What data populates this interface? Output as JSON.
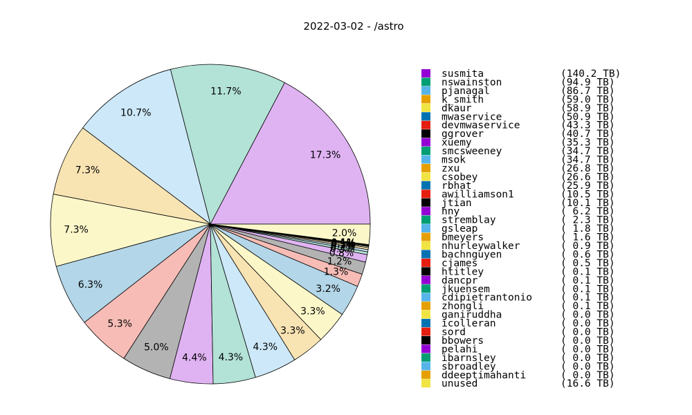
{
  "chart_data": {
    "type": "pie",
    "title": "2022-03-02 - /astro",
    "unit": "TB",
    "legend_position": "right",
    "slices": [
      {
        "label": "susmita",
        "value": 140.2,
        "value_text": "(140.2 TB)",
        "pct_label": "17.3%",
        "color": "#dfb3f2",
        "swatch": "#9400d3"
      },
      {
        "label": "nswainston",
        "value": 94.9,
        "value_text": "(94.9 TB)",
        "pct_label": "11.7%",
        "color": "#b3e2d6",
        "swatch": "#009e73"
      },
      {
        "label": "pjanagal",
        "value": 86.7,
        "value_text": "(86.7 TB)",
        "pct_label": "10.7%",
        "color": "#cde8f8",
        "swatch": "#56b4e9"
      },
      {
        "label": "k_smith",
        "value": 59.0,
        "value_text": "(59.0 TB)",
        "pct_label": "7.3%",
        "color": "#f8e3b3",
        "swatch": "#e69f00"
      },
      {
        "label": "dkaur",
        "value": 58.9,
        "value_text": "(58.9 TB)",
        "pct_label": "7.3%",
        "color": "#fbf7c9",
        "swatch": "#f0e442"
      },
      {
        "label": "mwaservice",
        "value": 50.9,
        "value_text": "(50.9 TB)",
        "pct_label": "6.3%",
        "color": "#b3d6e8",
        "swatch": "#0072b2"
      },
      {
        "label": "devmwaservice",
        "value": 43.3,
        "value_text": "(43.3 TB)",
        "pct_label": "5.3%",
        "color": "#f7bcb6",
        "swatch": "#e51e10"
      },
      {
        "label": "ggrover",
        "value": 40.7,
        "value_text": "(40.7 TB)",
        "pct_label": "5.0%",
        "color": "#b3b3b3",
        "swatch": "#000000"
      },
      {
        "label": "xuemy",
        "value": 35.3,
        "value_text": "(35.3 TB)",
        "pct_label": "4.4%",
        "color": "#dfb3f2",
        "swatch": "#9400d3"
      },
      {
        "label": "smcsweeney",
        "value": 34.7,
        "value_text": "(34.7 TB)",
        "pct_label": "4.3%",
        "color": "#b3e2d6",
        "swatch": "#009e73"
      },
      {
        "label": "msok",
        "value": 34.7,
        "value_text": "(34.7 TB)",
        "pct_label": "4.3%",
        "color": "#cde8f8",
        "swatch": "#56b4e9"
      },
      {
        "label": "zxu",
        "value": 26.8,
        "value_text": "(26.8 TB)",
        "pct_label": "3.3%",
        "color": "#f8e3b3",
        "swatch": "#e69f00"
      },
      {
        "label": "csobey",
        "value": 26.6,
        "value_text": "(26.6 TB)",
        "pct_label": "3.3%",
        "color": "#fbf7c9",
        "swatch": "#f0e442"
      },
      {
        "label": "rbhat",
        "value": 25.9,
        "value_text": "(25.9 TB)",
        "pct_label": "3.2%",
        "color": "#b3d6e8",
        "swatch": "#0072b2"
      },
      {
        "label": "awilliamson1",
        "value": 10.5,
        "value_text": "(10.5 TB)",
        "pct_label": "1.3%",
        "color": "#f7bcb6",
        "swatch": "#e51e10"
      },
      {
        "label": "jtian",
        "value": 10.1,
        "value_text": "(10.1 TB)",
        "pct_label": "1.2%",
        "color": "#b3b3b3",
        "swatch": "#000000"
      },
      {
        "label": "hny",
        "value": 6.2,
        "value_text": "( 6.2 TB)",
        "pct_label": "0.8%",
        "color": "#dfb3f2",
        "swatch": "#9400d3"
      },
      {
        "label": "stremblay",
        "value": 2.3,
        "value_text": "( 2.3 TB)",
        "pct_label": "0.3%",
        "color": "#b3e2d6",
        "swatch": "#009e73"
      },
      {
        "label": "gsleap",
        "value": 1.8,
        "value_text": "( 1.8 TB)",
        "pct_label": "0.2%",
        "color": "#cde8f8",
        "swatch": "#56b4e9"
      },
      {
        "label": "bmeyers",
        "value": 1.6,
        "value_text": "( 1.6 TB)",
        "pct_label": "0.2%",
        "color": "#f8e3b3",
        "swatch": "#e69f00"
      },
      {
        "label": "nhurleywalker",
        "value": 0.9,
        "value_text": "( 0.9 TB)",
        "pct_label": "0.1%",
        "color": "#fbf7c9",
        "swatch": "#f0e442"
      },
      {
        "label": "bachnguyen",
        "value": 0.6,
        "value_text": "( 0.6 TB)",
        "pct_label": "0.1%",
        "color": "#b3d6e8",
        "swatch": "#0072b2"
      },
      {
        "label": "cjames",
        "value": 0.5,
        "value_text": "( 0.5 TB)",
        "pct_label": "0.1%",
        "color": "#f7bcb6",
        "swatch": "#e51e10"
      },
      {
        "label": "htitley",
        "value": 0.1,
        "value_text": "( 0.1 TB)",
        "pct_label": "",
        "color": "#b3b3b3",
        "swatch": "#000000"
      },
      {
        "label": "dancpr",
        "value": 0.1,
        "value_text": "( 0.1 TB)",
        "pct_label": "",
        "color": "#dfb3f2",
        "swatch": "#9400d3"
      },
      {
        "label": "jkuensem",
        "value": 0.1,
        "value_text": "( 0.1 TB)",
        "pct_label": "",
        "color": "#b3e2d6",
        "swatch": "#009e73"
      },
      {
        "label": "cdipietrantonio",
        "value": 0.1,
        "value_text": "( 0.1 TB)",
        "pct_label": "",
        "color": "#cde8f8",
        "swatch": "#56b4e9"
      },
      {
        "label": "zhongli",
        "value": 0.1,
        "value_text": "( 0.1 TB)",
        "pct_label": "",
        "color": "#f8e3b3",
        "swatch": "#e69f00"
      },
      {
        "label": "ganiruddha",
        "value": 0.0,
        "value_text": "( 0.0 TB)",
        "pct_label": "",
        "color": "#fbf7c9",
        "swatch": "#f0e442"
      },
      {
        "label": "icolleran",
        "value": 0.0,
        "value_text": "( 0.0 TB)",
        "pct_label": "",
        "color": "#b3d6e8",
        "swatch": "#0072b2"
      },
      {
        "label": "sord",
        "value": 0.0,
        "value_text": "( 0.0 TB)",
        "pct_label": "",
        "color": "#f7bcb6",
        "swatch": "#e51e10"
      },
      {
        "label": "bbowers",
        "value": 0.0,
        "value_text": "( 0.0 TB)",
        "pct_label": "",
        "color": "#b3b3b3",
        "swatch": "#000000"
      },
      {
        "label": "pelahi",
        "value": 0.0,
        "value_text": "( 0.0 TB)",
        "pct_label": "",
        "color": "#dfb3f2",
        "swatch": "#9400d3"
      },
      {
        "label": "ibarnsley",
        "value": 0.0,
        "value_text": "( 0.0 TB)",
        "pct_label": "",
        "color": "#b3e2d6",
        "swatch": "#009e73"
      },
      {
        "label": "sbroadley",
        "value": 0.0,
        "value_text": "( 0.0 TB)",
        "pct_label": "",
        "color": "#cde8f8",
        "swatch": "#56b4e9"
      },
      {
        "label": "ddeeptimahanti",
        "value": 0.0,
        "value_text": "( 0.0 TB)",
        "pct_label": "",
        "color": "#f8e3b3",
        "swatch": "#e69f00"
      },
      {
        "label": "unused",
        "value": 16.6,
        "value_text": "(16.6 TB)",
        "pct_label": "2.0%",
        "color": "#fbf7c9",
        "swatch": "#f0e442"
      }
    ]
  }
}
